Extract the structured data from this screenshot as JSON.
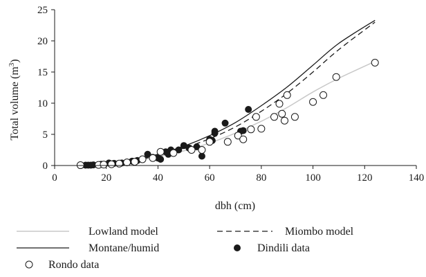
{
  "chart_data": {
    "type": "scatter",
    "xlabel": "dbh (cm)",
    "ylabel_main": "Total volume (m",
    "ylabel_sup": "3",
    "ylabel_end": ")",
    "xlim": [
      0,
      140
    ],
    "ylim": [
      0,
      25
    ],
    "x_ticks": [
      0,
      20,
      40,
      60,
      80,
      100,
      120,
      140
    ],
    "y_ticks": [
      0,
      5,
      10,
      15,
      20,
      25
    ],
    "grid": false,
    "legend_position": "bottom",
    "series": [
      {
        "name": "Lowland model",
        "kind": "line",
        "style": "solid",
        "color": "#c8c8c8",
        "x": [
          10,
          20,
          30,
          40,
          50,
          60,
          70,
          80,
          90,
          100,
          110,
          124
        ],
        "y": [
          0.05,
          0.25,
          0.7,
          1.4,
          2.35,
          3.6,
          5.2,
          7.1,
          9.3,
          11.8,
          14.0,
          16.7
        ]
      },
      {
        "name": "Montane/humid",
        "kind": "line",
        "style": "solid",
        "color": "#1a1a1a",
        "x": [
          10,
          20,
          30,
          40,
          50,
          60,
          70,
          80,
          90,
          100,
          110,
          124
        ],
        "y": [
          0.05,
          0.3,
          0.85,
          1.8,
          3.1,
          4.8,
          6.9,
          9.6,
          12.6,
          16.1,
          19.6,
          23.3
        ]
      },
      {
        "name": "Miombo model",
        "kind": "line",
        "style": "dashed",
        "color": "#1a1a1a",
        "x": [
          10,
          20,
          30,
          40,
          50,
          60,
          70,
          80,
          90,
          100,
          110,
          124
        ],
        "y": [
          0.05,
          0.3,
          0.8,
          1.6,
          2.8,
          4.3,
          6.2,
          8.7,
          11.6,
          15.0,
          18.6,
          23.0
        ]
      },
      {
        "name": "Dindili data",
        "kind": "points",
        "marker": "filled",
        "color": "#1a1a1a",
        "points": [
          [
            12,
            0.05
          ],
          [
            13,
            0.05
          ],
          [
            14,
            0.05
          ],
          [
            15,
            0.1
          ],
          [
            18,
            0.2
          ],
          [
            21,
            0.4
          ],
          [
            23,
            0.35
          ],
          [
            26,
            0.4
          ],
          [
            30,
            0.7
          ],
          [
            32,
            0.8
          ],
          [
            36,
            1.8
          ],
          [
            38,
            1.3
          ],
          [
            40,
            1.2
          ],
          [
            41,
            1.0
          ],
          [
            43,
            2.2
          ],
          [
            44,
            1.8
          ],
          [
            45,
            2.5
          ],
          [
            48,
            2.5
          ],
          [
            50,
            3.2
          ],
          [
            52,
            2.8
          ],
          [
            55,
            3.0
          ],
          [
            57,
            1.5
          ],
          [
            60,
            4.2
          ],
          [
            61,
            4.0
          ],
          [
            62,
            5.2
          ],
          [
            62,
            5.5
          ],
          [
            66,
            6.8
          ],
          [
            72,
            5.5
          ],
          [
            73,
            5.6
          ],
          [
            75,
            9.0
          ]
        ]
      },
      {
        "name": "Rondo data",
        "kind": "points",
        "marker": "open",
        "color": "#1a1a1a",
        "points": [
          [
            10,
            0.05
          ],
          [
            17,
            0.1
          ],
          [
            19,
            0.15
          ],
          [
            22,
            0.2
          ],
          [
            25,
            0.3
          ],
          [
            28,
            0.5
          ],
          [
            31,
            0.6
          ],
          [
            34,
            1.0
          ],
          [
            38,
            1.2
          ],
          [
            41,
            2.2
          ],
          [
            46,
            2.0
          ],
          [
            53,
            2.5
          ],
          [
            57,
            2.5
          ],
          [
            60,
            3.8
          ],
          [
            67,
            3.8
          ],
          [
            71,
            4.8
          ],
          [
            73,
            4.2
          ],
          [
            76,
            5.8
          ],
          [
            78,
            7.8
          ],
          [
            80,
            5.9
          ],
          [
            85,
            7.8
          ],
          [
            87,
            9.9
          ],
          [
            88,
            8.3
          ],
          [
            89,
            7.2
          ],
          [
            90,
            11.3
          ],
          [
            93,
            7.8
          ],
          [
            100,
            10.2
          ],
          [
            104,
            11.3
          ],
          [
            109,
            14.2
          ],
          [
            124,
            16.5
          ]
        ]
      }
    ]
  }
}
